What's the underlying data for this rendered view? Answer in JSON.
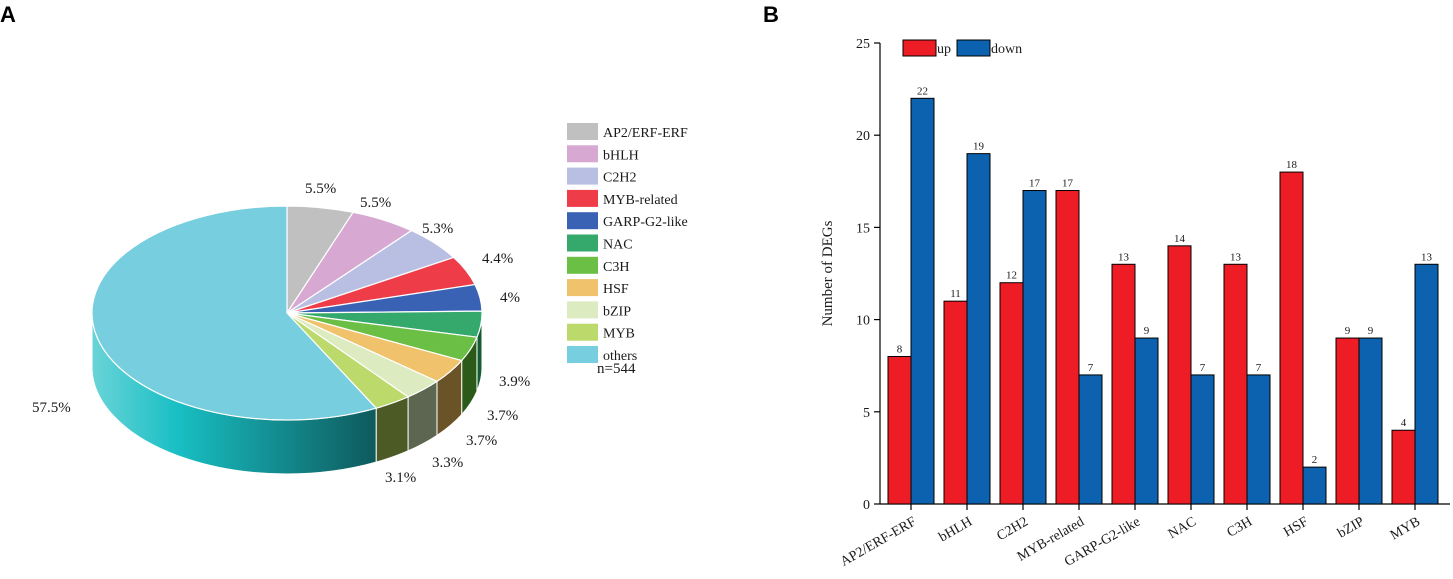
{
  "chart_data": [
    {
      "type": "pie",
      "panel": "A",
      "style": "3d",
      "n_label": "n=544",
      "slices": [
        {
          "label": "AP2/ERF-ERF",
          "percent": 5.5,
          "percent_label": "5.5%",
          "color": "#c0c0c0",
          "side_color": "#6d6d6d"
        },
        {
          "label": "bHLH",
          "percent": 5.5,
          "percent_label": "5.5%",
          "color": "#d7a9d2",
          "side_color": "#7a5f77"
        },
        {
          "label": "C2H2",
          "percent": 5.3,
          "percent_label": "5.3%",
          "color": "#b9bfe2",
          "side_color": "#666a80"
        },
        {
          "label": "MYB-related",
          "percent": 4.4,
          "percent_label": "4.4%",
          "color": "#ee3d48",
          "side_color": "#80131b"
        },
        {
          "label": "GARP-G2-like",
          "percent": 4.0,
          "percent_label": "4%",
          "color": "#3a62b4",
          "side_color": "#1c2f5e"
        },
        {
          "label": "NAC",
          "percent": 3.9,
          "percent_label": "3.9%",
          "color": "#35a86c",
          "side_color": "#135c34"
        },
        {
          "label": "C3H",
          "percent": 3.7,
          "percent_label": "3.7%",
          "color": "#6cbf45",
          "side_color": "#2c5a18"
        },
        {
          "label": "HSF",
          "percent": 3.7,
          "percent_label": "3.7%",
          "color": "#efc26b",
          "side_color": "#6a5326"
        },
        {
          "label": "bZIP",
          "percent": 3.3,
          "percent_label": "3.3%",
          "color": "#dcebc0",
          "side_color": "#5c6650"
        },
        {
          "label": "MYB",
          "percent": 3.1,
          "percent_label": "3.1%",
          "color": "#bcd96c",
          "side_color": "#4c5a26"
        },
        {
          "label": "others",
          "percent": 57.5,
          "percent_label": "57.5%",
          "color": "#77cede",
          "side_color": "#1c8a8c"
        }
      ]
    },
    {
      "type": "bar",
      "panel": "B",
      "ylabel": "Number of DEGs",
      "xlabel": "",
      "ylim": [
        0,
        25
      ],
      "yticks": [
        0,
        5,
        10,
        15,
        20,
        25
      ],
      "categories": [
        "AP2/ERF-ERF",
        "bHLH",
        "C2H2",
        "MYB-related",
        "GARP-G2-like",
        "NAC",
        "C3H",
        "HSF",
        "bZIP",
        "MYB"
      ],
      "series": [
        {
          "name": "up",
          "color": "#ee1c25",
          "values": [
            8,
            11,
            12,
            17,
            13,
            14,
            13,
            18,
            9,
            4
          ]
        },
        {
          "name": "down",
          "color": "#0c62ae",
          "values": [
            22,
            19,
            17,
            7,
            9,
            7,
            7,
            2,
            9,
            13
          ]
        }
      ]
    }
  ]
}
